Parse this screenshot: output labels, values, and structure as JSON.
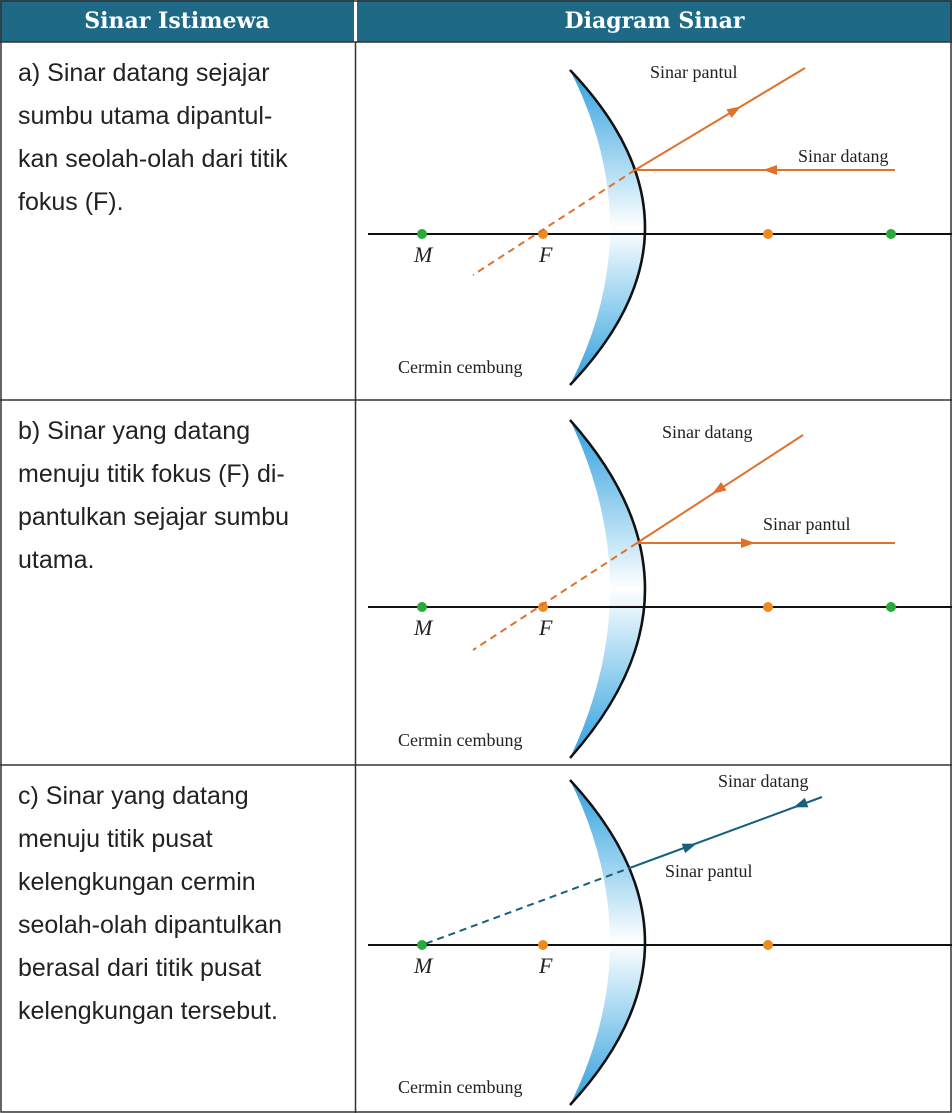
{
  "header": {
    "columns": [
      "Sinar Istimewa",
      "Diagram Sinar"
    ]
  },
  "rows": [
    {
      "description": [
        "a)  Sinar datang sejajar",
        "sumbu utama dipantul-",
        "kan seolah-olah dari titik",
        "fokus (F)."
      ],
      "diagram": {
        "reflected_label": "Sinar pantul",
        "incident_label": "Sinar datang",
        "point_labels": [
          "M",
          "F"
        ],
        "mirror_label": "Cermin cembung"
      }
    },
    {
      "description": [
        "b)  Sinar yang datang",
        "menuju titik fokus (F) di-",
        "pantulkan sejajar sumbu",
        "utama."
      ],
      "diagram": {
        "incident_label": "Sinar datang",
        "reflected_label": "Sinar pantul",
        "point_labels": [
          "M",
          "F"
        ],
        "mirror_label": "Cermin cembung"
      }
    },
    {
      "description": [
        "c)  Sinar yang datang",
        "menuju titik pusat",
        "kelengkungan cermin",
        "seolah-olah dipantulkan",
        "berasal dari titik pusat",
        "kelengkungan tersebut."
      ],
      "diagram": {
        "incident_label": "Sinar datang",
        "reflected_label": "Sinar pantul",
        "point_labels": [
          "M",
          "F"
        ],
        "mirror_label": "Cermin cembung"
      }
    }
  ]
}
